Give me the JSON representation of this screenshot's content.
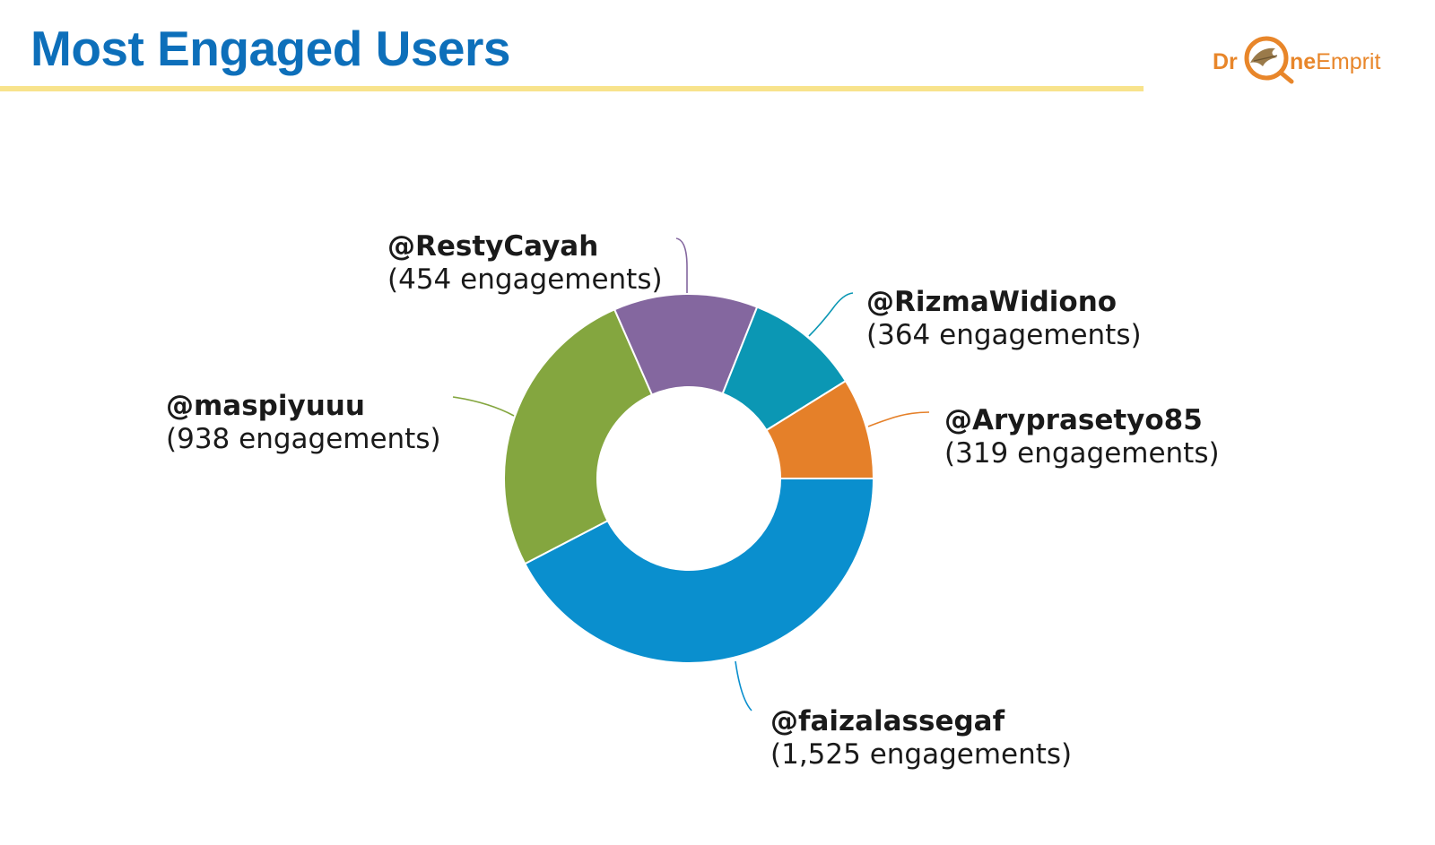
{
  "page": {
    "title": "Most Engaged Users"
  },
  "logo": {
    "text_left": "Dr",
    "text_right_bold": "ne",
    "text_right_light": "Emprit",
    "accent": "#e8862a"
  },
  "colors": {
    "title": "#0d6fba",
    "rule": "#f8e38c"
  },
  "chart_data": {
    "type": "pie",
    "donut": true,
    "title": "Most Engaged Users",
    "series": [
      {
        "name": "@faizalassegaf",
        "label": "(1,525 engagements)",
        "value": 1525,
        "color": "#0a8fce"
      },
      {
        "name": "@maspiyuuu",
        "label": "(938 engagements)",
        "value": 938,
        "color": "#84a63f"
      },
      {
        "name": "@RestyCayah",
        "label": "(454 engagements)",
        "value": 454,
        "color": "#84679f"
      },
      {
        "name": "@RizmaWidiono",
        "label": "(364 engagements)",
        "value": 364,
        "color": "#0b97b4"
      },
      {
        "name": "@Aryprasetyo85",
        "label": "(319 engagements)",
        "value": 319,
        "color": "#e58029"
      }
    ]
  }
}
